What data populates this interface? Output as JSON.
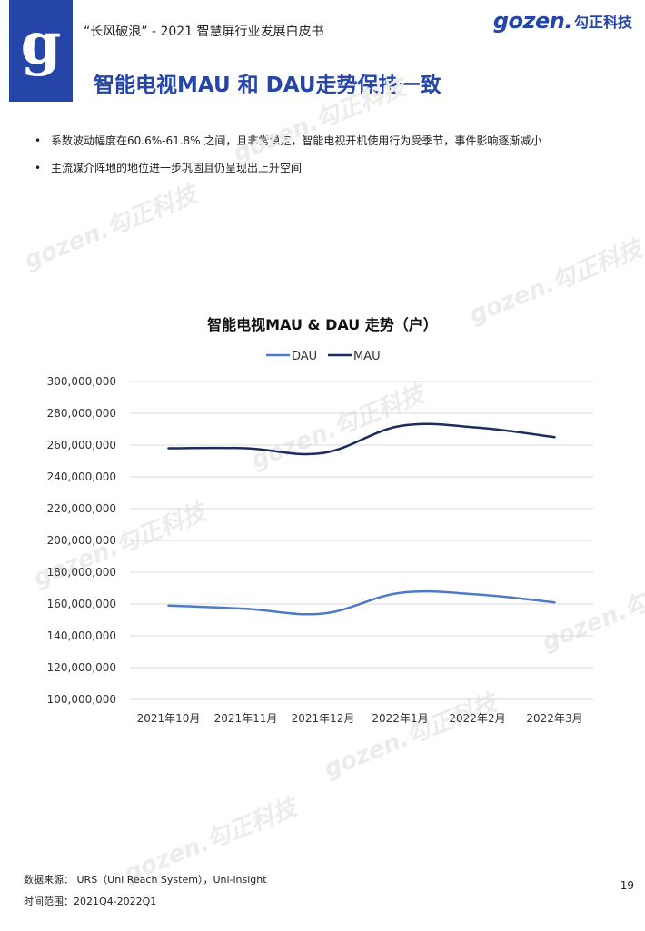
{
  "header": {
    "subtitle": "“长风破浪” - 2021 智慧屏行业发展白皮书",
    "logo_glyph": "g",
    "brand_latin": "gozen.",
    "brand_cn": "勾正科技",
    "accent_color": "#2546a8"
  },
  "page_title": "智能电视MAU 和 DAU走势保持一致",
  "bullets": [
    "系数波动幅度在60.6%-61.8% 之间，且非常稳定，智能电视开机使用行为受季节，事件影响逐渐减小",
    "主流媒介阵地的地位进一步巩固且仍呈现出上升空间"
  ],
  "bullet_marker": "•",
  "watermark_text": "gozen.勾正科技",
  "chart_data": {
    "type": "line",
    "title": "智能电视MAU & DAU 走势（户）",
    "categories": [
      "2021年10月",
      "2021年11月",
      "2021年12月",
      "2022年1月",
      "2022年2月",
      "2022年3月"
    ],
    "series": [
      {
        "name": "DAU",
        "color": "#4f7ac7",
        "values": [
          159000000,
          157000000,
          154000000,
          167000000,
          166000000,
          161000000
        ]
      },
      {
        "name": "MAU",
        "color": "#1b2d5e",
        "values": [
          258000000,
          258000000,
          255000000,
          272000000,
          271000000,
          265000000
        ]
      }
    ],
    "y_ticks": [
      "100,000,000",
      "120,000,000",
      "140,000,000",
      "160,000,000",
      "180,000,000",
      "200,000,000",
      "220,000,000",
      "240,000,000",
      "260,000,000",
      "280,000,000",
      "300,000,000"
    ],
    "ylim": [
      100000000,
      300000000
    ],
    "legend": "top",
    "grid": true,
    "smooth": true
  },
  "footer": {
    "source": "数据来源： URS（Uni Reach System），Uni-insight",
    "range": "时间范围：2021Q4-2022Q1"
  },
  "page_number": "19"
}
